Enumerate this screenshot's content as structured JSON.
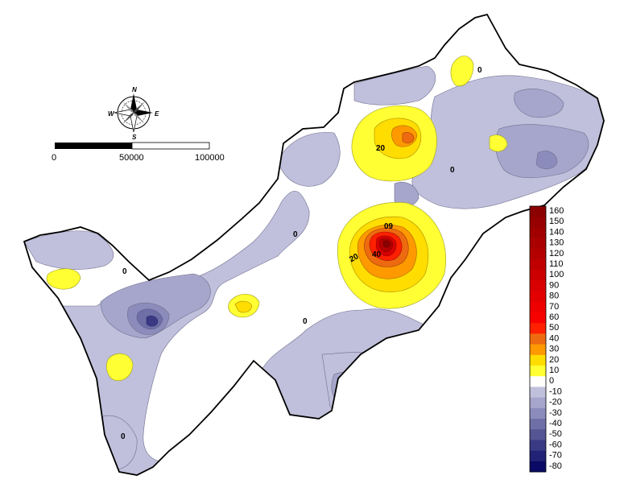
{
  "compass": {
    "n": "N",
    "s": "S",
    "e": "E",
    "w": "W"
  },
  "scale_bar": {
    "labels": [
      "0",
      "50000",
      "100000"
    ]
  },
  "contour_labels": [
    "20",
    "60",
    "40",
    "20",
    "0",
    "0",
    "0",
    "0",
    "0",
    "0"
  ],
  "legend": {
    "items": [
      {
        "label": "160",
        "color": "#8b0000"
      },
      {
        "label": "150",
        "color": "#960000"
      },
      {
        "label": "140",
        "color": "#a00000"
      },
      {
        "label": "130",
        "color": "#ab0000"
      },
      {
        "label": "120",
        "color": "#b50000"
      },
      {
        "label": "110",
        "color": "#c00000"
      },
      {
        "label": "100",
        "color": "#cc0000"
      },
      {
        "label": "90",
        "color": "#d80000"
      },
      {
        "label": "80",
        "color": "#e30000"
      },
      {
        "label": "70",
        "color": "#ee0000"
      },
      {
        "label": "60",
        "color": "#f80000"
      },
      {
        "label": "50",
        "color": "#ff2000"
      },
      {
        "label": "40",
        "color": "#ee6a10"
      },
      {
        "label": "30",
        "color": "#ff9900"
      },
      {
        "label": "20",
        "color": "#ffdd00"
      },
      {
        "label": "10",
        "color": "#ffff33"
      },
      {
        "label": "0",
        "color": "#ffffff"
      },
      {
        "label": "-10",
        "color": "#c0c0dc"
      },
      {
        "label": "-20",
        "color": "#a6a6cc"
      },
      {
        "label": "-30",
        "color": "#8c8cbc"
      },
      {
        "label": "-40",
        "color": "#6f6fa8"
      },
      {
        "label": "-50",
        "color": "#555594"
      },
      {
        "label": "-60",
        "color": "#3a3a84"
      },
      {
        "label": "-70",
        "color": "#222276"
      },
      {
        "label": "-80",
        "color": "#0a0a66"
      }
    ]
  }
}
